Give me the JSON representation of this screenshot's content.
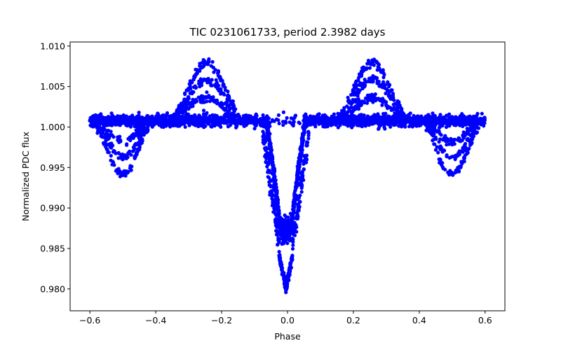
{
  "chart_data": {
    "type": "scatter",
    "title": "TIC 0231061733, period 2.3982 days",
    "xlabel": "Phase",
    "ylabel": "Normalized PDC flux",
    "xlim": [
      -0.66,
      0.66
    ],
    "ylim": [
      0.9773,
      1.0105
    ],
    "x_ticks": [
      -0.6,
      -0.4,
      -0.2,
      0.0,
      0.2,
      0.4,
      0.6
    ],
    "x_tick_labels": [
      "−0.6",
      "−0.4",
      "−0.2",
      "0.0",
      "0.2",
      "0.4",
      "0.6"
    ],
    "y_ticks": [
      0.98,
      0.985,
      0.99,
      0.995,
      1.0,
      1.005,
      1.01
    ],
    "y_tick_labels": [
      "0.980",
      "0.985",
      "0.990",
      "0.995",
      "1.000",
      "1.005",
      "1.010"
    ],
    "grid": false,
    "marker_color": "#0000ff",
    "series": [
      {
        "name": "baseline",
        "x_range": [
          -0.6,
          0.6
        ],
        "y_center": 1.0008,
        "y_spread": 0.0012
      },
      {
        "name": "secondary-bump-left",
        "center": -0.245,
        "peak_levels": [
          1.0079,
          1.0058,
          1.0036
        ],
        "half_width": 0.12
      },
      {
        "name": "secondary-bump-right",
        "center": 0.258,
        "peak_levels": [
          1.0079,
          1.0058,
          1.0036
        ],
        "half_width": 0.12
      },
      {
        "name": "dip-left",
        "center": -0.5,
        "trough_levels": [
          0.9942,
          0.9963,
          0.9982
        ],
        "half_width": 0.1
      },
      {
        "name": "dip-right",
        "center": 0.5,
        "trough_levels": [
          0.9942,
          0.9963,
          0.9982
        ],
        "half_width": 0.1
      },
      {
        "name": "primary-eclipse",
        "center": -0.005,
        "bottom_main": 0.9875,
        "bottom_deep": 0.98,
        "half_width": 0.06
      }
    ]
  }
}
